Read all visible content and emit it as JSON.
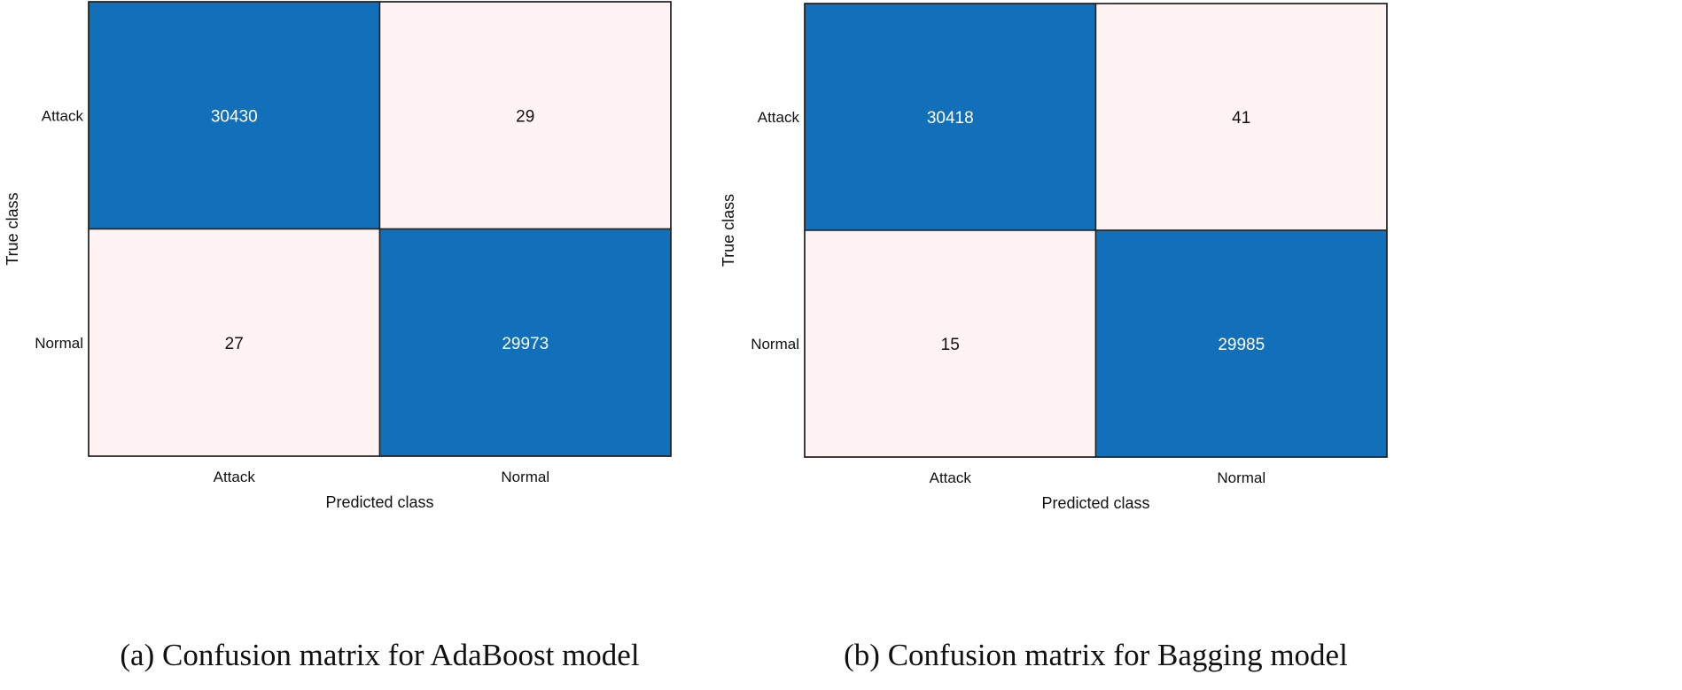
{
  "chart_data": [
    {
      "type": "heatmap",
      "caption": "(a) Confusion matrix for AdaBoost model",
      "xlabel": "Predicted class",
      "ylabel": "True class",
      "row_labels": [
        "Attack",
        "Normal"
      ],
      "col_labels": [
        "Attack",
        "Normal"
      ],
      "values": [
        [
          30430,
          29
        ],
        [
          27,
          29973
        ]
      ],
      "colors": {
        "high": "#1170b9",
        "low": "#fff4f3",
        "high_text": "#ffffff",
        "low_text": "#111111"
      }
    },
    {
      "type": "heatmap",
      "caption": "(b) Confusion matrix for Bagging model",
      "xlabel": "Predicted class",
      "ylabel": "True class",
      "row_labels": [
        "Attack",
        "Normal"
      ],
      "col_labels": [
        "Attack",
        "Normal"
      ],
      "values": [
        [
          30418,
          41
        ],
        [
          15,
          29985
        ]
      ],
      "colors": {
        "high": "#1170b9",
        "low": "#fff4f3",
        "high_text": "#ffffff",
        "low_text": "#111111"
      }
    }
  ]
}
